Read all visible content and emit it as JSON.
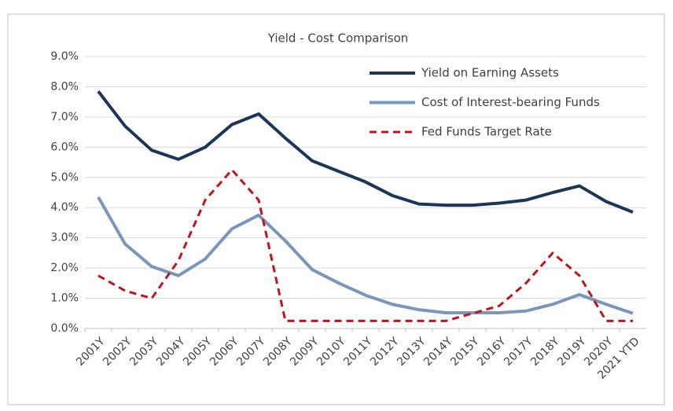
{
  "chart_data": {
    "type": "line",
    "title": "Yield - Cost Comparison",
    "categories": [
      "2001Y",
      "2002Y",
      "2003Y",
      "2004Y",
      "2005Y",
      "2006Y",
      "2007Y",
      "2008Y",
      "2009Y",
      "2010Y",
      "2011Y",
      "2012Y",
      "2013Y",
      "2014Y",
      "2015Y",
      "2016Y",
      "2017Y",
      "2018Y",
      "2019Y",
      "2020Y",
      "2021 YTD"
    ],
    "series": [
      {
        "name": "Yield on Earning Assets",
        "color": "#1b3659",
        "dash": false,
        "values": [
          7.85,
          6.7,
          5.9,
          5.6,
          6.0,
          6.75,
          7.1,
          6.3,
          5.55,
          5.2,
          4.85,
          4.4,
          4.12,
          4.08,
          4.08,
          4.15,
          4.25,
          4.5,
          4.72,
          4.2,
          3.85
        ]
      },
      {
        "name": "Cost of Interest-bearing Funds",
        "color": "#7a96bd",
        "dash": false,
        "values": [
          4.35,
          2.8,
          2.05,
          1.75,
          2.3,
          3.3,
          3.75,
          2.9,
          1.95,
          1.5,
          1.1,
          0.8,
          0.62,
          0.52,
          0.52,
          0.52,
          0.58,
          0.8,
          1.12,
          0.8,
          0.5
        ]
      },
      {
        "name": "Fed Funds Target Rate",
        "color": "#c0141c",
        "dash": true,
        "values": [
          1.75,
          1.25,
          1.0,
          2.25,
          4.25,
          5.25,
          4.25,
          0.25,
          0.25,
          0.25,
          0.25,
          0.25,
          0.25,
          0.25,
          0.5,
          0.75,
          1.5,
          2.5,
          1.75,
          0.25,
          0.25
        ]
      }
    ],
    "ylim": [
      0,
      9
    ],
    "yticks": [
      {
        "value": 0,
        "label": "0.0%"
      },
      {
        "value": 1,
        "label": "1.0%"
      },
      {
        "value": 2,
        "label": "2.0%"
      },
      {
        "value": 3,
        "label": "3.0%"
      },
      {
        "value": 4,
        "label": "4.0%"
      },
      {
        "value": 5,
        "label": "5.0%"
      },
      {
        "value": 6,
        "label": "6.0%"
      },
      {
        "value": 7,
        "label": "7.0%"
      },
      {
        "value": 8,
        "label": "8.0%"
      },
      {
        "value": 9,
        "label": "9.0%"
      }
    ],
    "grid": true,
    "legend": "top-right"
  }
}
